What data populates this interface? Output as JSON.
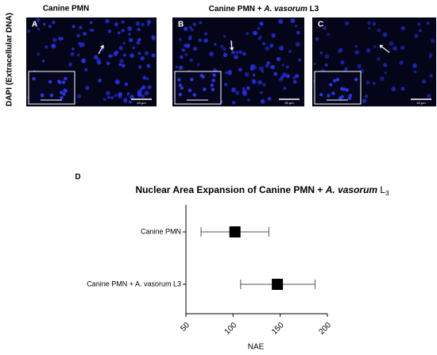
{
  "panels": {
    "y_label": "DAPI  (Extracellular DNA)",
    "header_left": "Canine PMN",
    "header_right_parts": [
      "Canine PMN + ",
      "A. vasorum",
      " L3"
    ],
    "items": [
      {
        "letter": "A",
        "scale": "20 μm"
      },
      {
        "letter": "B",
        "scale": "20 μm"
      },
      {
        "letter": "C",
        "scale": "20 μm"
      }
    ],
    "chart_letter": "D"
  },
  "chart_data": {
    "type": "interval",
    "title_parts": [
      "Nuclear Area Expansion of  Canine PMN + ",
      "A. vasorum",
      " L",
      "3"
    ],
    "x_label": "NAE",
    "categories": [
      "Canine PMN",
      "Canine PMN + A. vasorum L3"
    ],
    "values": [
      102,
      147
    ],
    "lower": [
      66,
      108
    ],
    "upper": [
      138,
      187
    ],
    "color": "#000000",
    "xlim": [
      50,
      200
    ],
    "xticks": [
      50,
      100,
      150,
      200
    ]
  }
}
